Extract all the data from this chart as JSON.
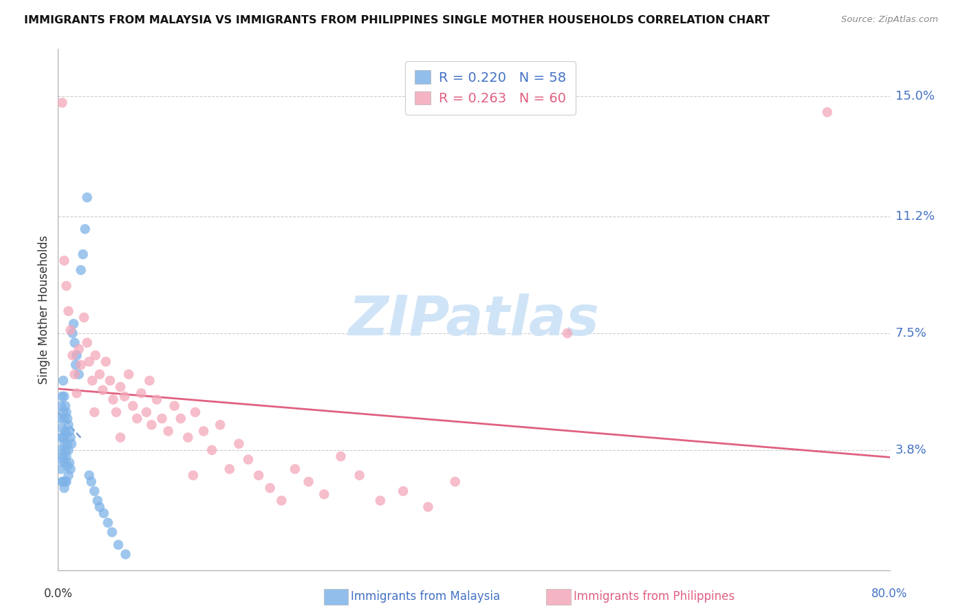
{
  "title": "IMMIGRANTS FROM MALAYSIA VS IMMIGRANTS FROM PHILIPPINES SINGLE MOTHER HOUSEHOLDS CORRELATION CHART",
  "source": "Source: ZipAtlas.com",
  "ylabel": "Single Mother Households",
  "ytick_labels": [
    "15.0%",
    "11.2%",
    "7.5%",
    "3.8%"
  ],
  "ytick_values": [
    0.15,
    0.112,
    0.075,
    0.038
  ],
  "xlim": [
    0.0,
    0.8
  ],
  "ylim": [
    0.0,
    0.165
  ],
  "malaysia_R": 0.22,
  "malaysia_N": 58,
  "philippines_R": 0.263,
  "philippines_N": 60,
  "malaysia_color": "#7fb3e8",
  "philippines_color": "#f4a7b9",
  "malaysia_line_color": "#5585c8",
  "philippines_line_color": "#e06080",
  "watermark": "ZIPatlas",
  "watermark_color": "#d0e4f7",
  "malaysia_x": [
    0.002,
    0.002,
    0.003,
    0.003,
    0.003,
    0.004,
    0.004,
    0.004,
    0.004,
    0.005,
    0.005,
    0.005,
    0.005,
    0.005,
    0.006,
    0.006,
    0.006,
    0.006,
    0.006,
    0.007,
    0.007,
    0.007,
    0.007,
    0.008,
    0.008,
    0.008,
    0.008,
    0.009,
    0.009,
    0.009,
    0.01,
    0.01,
    0.01,
    0.011,
    0.011,
    0.012,
    0.012,
    0.013,
    0.014,
    0.015,
    0.016,
    0.017,
    0.018,
    0.02,
    0.022,
    0.024,
    0.026,
    0.028,
    0.03,
    0.032,
    0.035,
    0.038,
    0.04,
    0.044,
    0.048,
    0.052,
    0.058,
    0.065
  ],
  "malaysia_y": [
    0.048,
    0.038,
    0.052,
    0.042,
    0.032,
    0.055,
    0.045,
    0.035,
    0.028,
    0.06,
    0.05,
    0.042,
    0.036,
    0.028,
    0.055,
    0.048,
    0.04,
    0.034,
    0.026,
    0.052,
    0.044,
    0.038,
    0.028,
    0.05,
    0.043,
    0.036,
    0.028,
    0.048,
    0.04,
    0.033,
    0.046,
    0.038,
    0.03,
    0.044,
    0.034,
    0.042,
    0.032,
    0.04,
    0.075,
    0.078,
    0.072,
    0.065,
    0.068,
    0.062,
    0.095,
    0.1,
    0.108,
    0.118,
    0.03,
    0.028,
    0.025,
    0.022,
    0.02,
    0.018,
    0.015,
    0.012,
    0.008,
    0.005
  ],
  "philippines_x": [
    0.004,
    0.006,
    0.008,
    0.01,
    0.012,
    0.014,
    0.016,
    0.018,
    0.02,
    0.022,
    0.025,
    0.028,
    0.03,
    0.033,
    0.036,
    0.04,
    0.043,
    0.046,
    0.05,
    0.053,
    0.056,
    0.06,
    0.064,
    0.068,
    0.072,
    0.076,
    0.08,
    0.085,
    0.09,
    0.095,
    0.1,
    0.106,
    0.112,
    0.118,
    0.125,
    0.132,
    0.14,
    0.148,
    0.156,
    0.165,
    0.174,
    0.183,
    0.193,
    0.204,
    0.215,
    0.228,
    0.241,
    0.256,
    0.272,
    0.29,
    0.31,
    0.332,
    0.356,
    0.382,
    0.035,
    0.06,
    0.088,
    0.13,
    0.49,
    0.74
  ],
  "philippines_y": [
    0.148,
    0.098,
    0.09,
    0.082,
    0.076,
    0.068,
    0.062,
    0.056,
    0.07,
    0.065,
    0.08,
    0.072,
    0.066,
    0.06,
    0.068,
    0.062,
    0.057,
    0.066,
    0.06,
    0.054,
    0.05,
    0.058,
    0.055,
    0.062,
    0.052,
    0.048,
    0.056,
    0.05,
    0.046,
    0.054,
    0.048,
    0.044,
    0.052,
    0.048,
    0.042,
    0.05,
    0.044,
    0.038,
    0.046,
    0.032,
    0.04,
    0.035,
    0.03,
    0.026,
    0.022,
    0.032,
    0.028,
    0.024,
    0.036,
    0.03,
    0.022,
    0.025,
    0.02,
    0.028,
    0.05,
    0.042,
    0.06,
    0.03,
    0.075,
    0.145
  ]
}
